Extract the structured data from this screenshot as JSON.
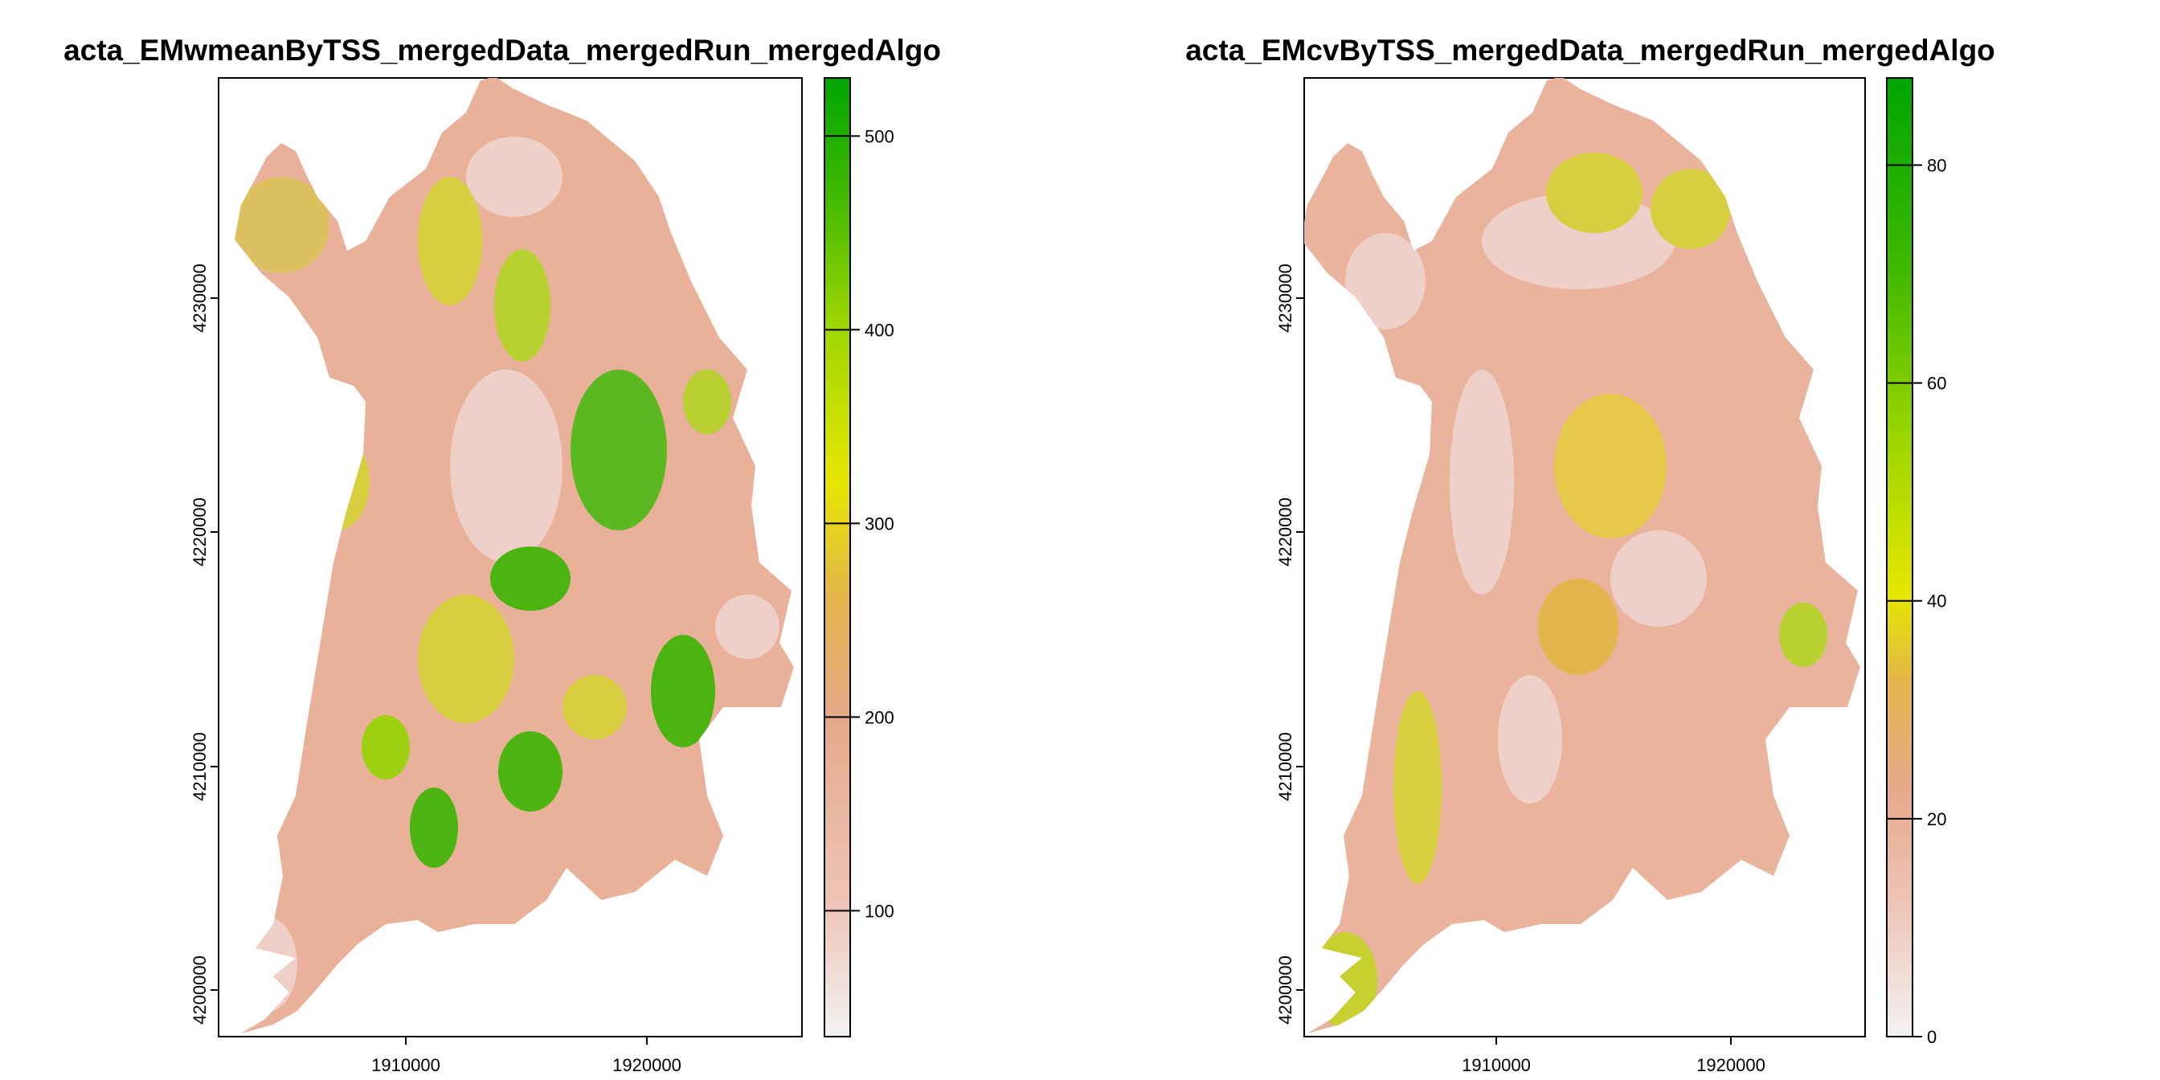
{
  "maps": [
    {
      "title": "acta_EMwmeanByTSS_mergedData_mergedRun_mergedAlgo",
      "x_ticks": [
        "1910000",
        "1920000"
      ],
      "y_ticks": [
        "4200000",
        "4210000",
        "4220000",
        "4230000"
      ],
      "legend": {
        "min": 35,
        "max": 530,
        "ticks": [
          100,
          200,
          300,
          400,
          500
        ]
      },
      "palette": [
        "#f2f2f2",
        "#eec4b6",
        "#e5a98a",
        "#e2b64a",
        "#e6e600",
        "#9ed600",
        "#3fb800",
        "#00a600"
      ]
    },
    {
      "title": "acta_EMcvByTSS_mergedData_mergedRun_mergedAlgo",
      "x_ticks": [
        "1910000",
        "1920000"
      ],
      "y_ticks": [
        "4200000",
        "4210000",
        "4220000",
        "4230000"
      ],
      "legend": {
        "min": 0,
        "max": 88,
        "ticks": [
          0,
          20,
          40,
          60,
          80
        ]
      },
      "palette": [
        "#f2f2f2",
        "#eec4b6",
        "#e5a98a",
        "#e2b64a",
        "#e6e600",
        "#9ed600",
        "#3fb800",
        "#00a600"
      ]
    }
  ]
}
